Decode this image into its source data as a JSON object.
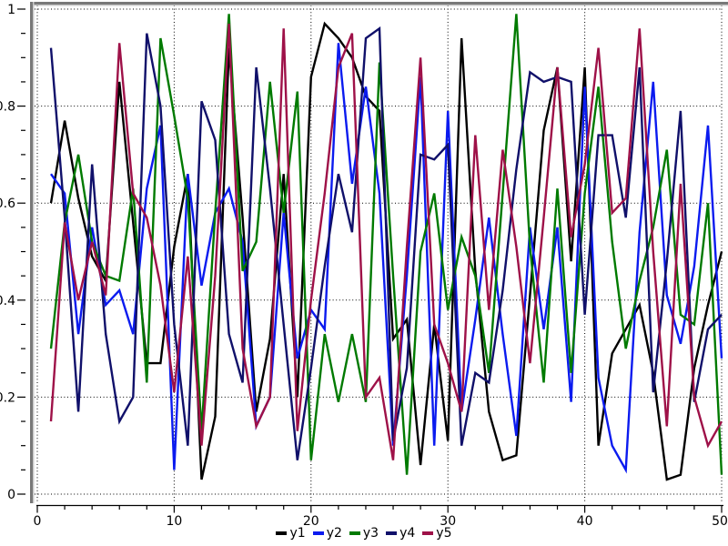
{
  "chart_data": {
    "type": "line",
    "title": "",
    "xlabel": "",
    "ylabel": "",
    "x_start": 1,
    "x_step": 1,
    "xlim": [
      0,
      50
    ],
    "ylim": [
      0,
      1
    ],
    "x_tick_labels": [
      "0",
      "10",
      "20",
      "30",
      "40",
      "50"
    ],
    "x_major_tick_step": 10,
    "x_minor_tick_step": 2,
    "y_tick_labels": [
      "0",
      "0.2",
      "0.4",
      "0.6",
      "0.8",
      "1"
    ],
    "y_major_tick_step": 0.2,
    "y_minor_tick_step": 0.05,
    "grid": {
      "style": "dotted",
      "color": "#000000",
      "on_major_ticks": true
    },
    "legend_position": "bottom-center",
    "series": [
      {
        "name": "y1",
        "color": "#000000",
        "values": [
          0.6,
          0.77,
          0.61,
          0.49,
          0.44,
          0.85,
          0.56,
          0.27,
          0.27,
          0.51,
          0.66,
          0.03,
          0.16,
          0.92,
          0.57,
          0.17,
          0.32,
          0.66,
          0.2,
          0.86,
          0.97,
          0.94,
          0.9,
          0.82,
          0.79,
          0.32,
          0.36,
          0.06,
          0.35,
          0.11,
          0.94,
          0.46,
          0.17,
          0.07,
          0.08,
          0.41,
          0.75,
          0.88,
          0.48,
          0.88,
          0.1,
          0.29,
          0.34,
          0.39,
          0.25,
          0.03,
          0.04,
          0.26,
          0.39,
          0.5
        ]
      },
      {
        "name": "y2",
        "color": "#0b1bef",
        "values": [
          0.66,
          0.62,
          0.33,
          0.55,
          0.39,
          0.42,
          0.33,
          0.63,
          0.76,
          0.05,
          0.66,
          0.43,
          0.58,
          0.63,
          0.52,
          0.14,
          0.2,
          0.58,
          0.28,
          0.38,
          0.34,
          0.93,
          0.64,
          0.84,
          0.62,
          0.1,
          0.45,
          0.86,
          0.1,
          0.79,
          0.17,
          0.36,
          0.57,
          0.33,
          0.12,
          0.55,
          0.34,
          0.55,
          0.19,
          0.84,
          0.24,
          0.1,
          0.05,
          0.54,
          0.85,
          0.41,
          0.31,
          0.47,
          0.76,
          0.28
        ]
      },
      {
        "name": "y3",
        "color": "#007a00",
        "values": [
          0.3,
          0.56,
          0.7,
          0.52,
          0.45,
          0.44,
          0.63,
          0.23,
          0.94,
          0.78,
          0.61,
          0.13,
          0.58,
          0.99,
          0.46,
          0.52,
          0.85,
          0.58,
          0.83,
          0.07,
          0.33,
          0.19,
          0.33,
          0.19,
          0.89,
          0.45,
          0.04,
          0.5,
          0.62,
          0.38,
          0.53,
          0.45,
          0.25,
          0.62,
          0.99,
          0.51,
          0.23,
          0.63,
          0.25,
          0.62,
          0.84,
          0.52,
          0.3,
          0.44,
          0.55,
          0.71,
          0.37,
          0.35,
          0.6,
          0.04
        ]
      },
      {
        "name": "y4",
        "color": "#10106a",
        "values": [
          0.92,
          0.57,
          0.17,
          0.68,
          0.33,
          0.15,
          0.2,
          0.95,
          0.8,
          0.35,
          0.1,
          0.81,
          0.73,
          0.33,
          0.23,
          0.88,
          0.63,
          0.35,
          0.07,
          0.26,
          0.47,
          0.66,
          0.54,
          0.94,
          0.96,
          0.11,
          0.26,
          0.7,
          0.69,
          0.72,
          0.1,
          0.25,
          0.23,
          0.42,
          0.67,
          0.87,
          0.85,
          0.86,
          0.85,
          0.37,
          0.74,
          0.74,
          0.57,
          0.88,
          0.21,
          0.48,
          0.79,
          0.19,
          0.34,
          0.37
        ]
      },
      {
        "name": "y5",
        "color": "#9e1148",
        "values": [
          0.15,
          0.56,
          0.4,
          0.52,
          0.41,
          0.93,
          0.62,
          0.57,
          0.43,
          0.21,
          0.49,
          0.1,
          0.45,
          0.97,
          0.3,
          0.14,
          0.2,
          0.96,
          0.13,
          0.4,
          0.62,
          0.88,
          0.95,
          0.2,
          0.24,
          0.07,
          0.51,
          0.9,
          0.35,
          0.27,
          0.17,
          0.74,
          0.38,
          0.71,
          0.51,
          0.27,
          0.57,
          0.88,
          0.53,
          0.68,
          0.92,
          0.58,
          0.61,
          0.96,
          0.5,
          0.14,
          0.64,
          0.2,
          0.1,
          0.15
        ]
      }
    ]
  },
  "frame": {
    "border_color": "#787878",
    "border_highlight": "#c8c8c8",
    "background": "#ffffff",
    "tick_color": "#000000"
  }
}
